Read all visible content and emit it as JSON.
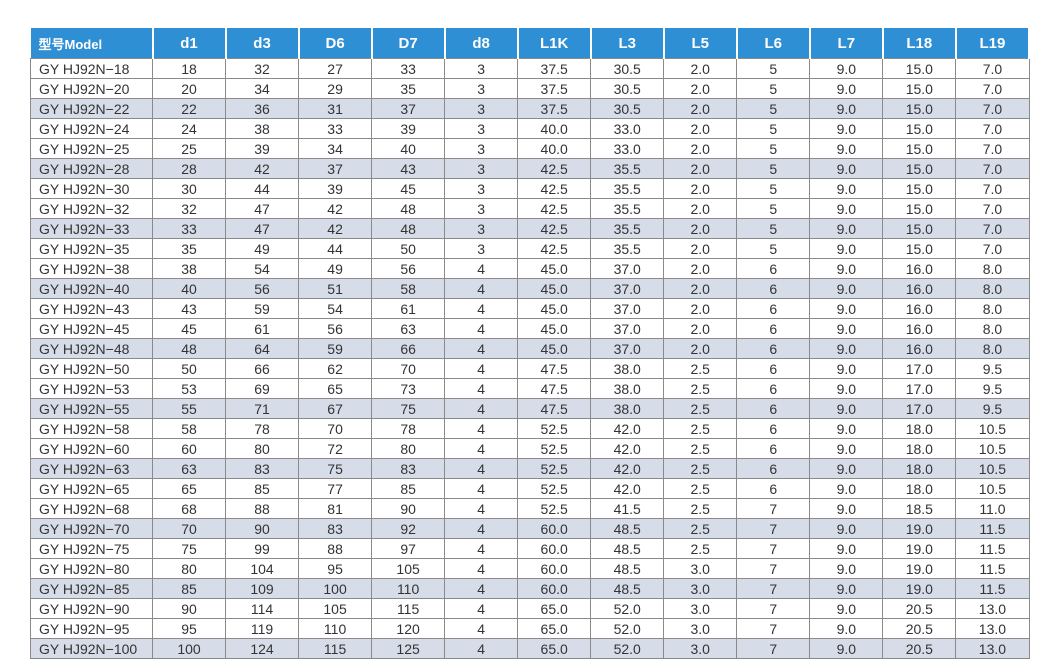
{
  "table": {
    "header": [
      "型号Model",
      "d1",
      "d3",
      "D6",
      "D7",
      "d8",
      "L1K",
      "L3",
      "L5",
      "L6",
      "L7",
      "L18",
      "L19"
    ],
    "rows": [
      [
        "GY HJ92N−18",
        "18",
        "32",
        "27",
        "33",
        "3",
        "37.5",
        "30.5",
        "2.0",
        "5",
        "9.0",
        "15.0",
        "7.0"
      ],
      [
        "GY HJ92N−20",
        "20",
        "34",
        "29",
        "35",
        "3",
        "37.5",
        "30.5",
        "2.0",
        "5",
        "9.0",
        "15.0",
        "7.0"
      ],
      [
        "GY HJ92N−22",
        "22",
        "36",
        "31",
        "37",
        "3",
        "37.5",
        "30.5",
        "2.0",
        "5",
        "9.0",
        "15.0",
        "7.0"
      ],
      [
        "GY HJ92N−24",
        "24",
        "38",
        "33",
        "39",
        "3",
        "40.0",
        "33.0",
        "2.0",
        "5",
        "9.0",
        "15.0",
        "7.0"
      ],
      [
        "GY HJ92N−25",
        "25",
        "39",
        "34",
        "40",
        "3",
        "40.0",
        "33.0",
        "2.0",
        "5",
        "9.0",
        "15.0",
        "7.0"
      ],
      [
        "GY HJ92N−28",
        "28",
        "42",
        "37",
        "43",
        "3",
        "42.5",
        "35.5",
        "2.0",
        "5",
        "9.0",
        "15.0",
        "7.0"
      ],
      [
        "GY HJ92N−30",
        "30",
        "44",
        "39",
        "45",
        "3",
        "42.5",
        "35.5",
        "2.0",
        "5",
        "9.0",
        "15.0",
        "7.0"
      ],
      [
        "GY HJ92N−32",
        "32",
        "47",
        "42",
        "48",
        "3",
        "42.5",
        "35.5",
        "2.0",
        "5",
        "9.0",
        "15.0",
        "7.0"
      ],
      [
        "GY HJ92N−33",
        "33",
        "47",
        "42",
        "48",
        "3",
        "42.5",
        "35.5",
        "2.0",
        "5",
        "9.0",
        "15.0",
        "7.0"
      ],
      [
        "GY HJ92N−35",
        "35",
        "49",
        "44",
        "50",
        "3",
        "42.5",
        "35.5",
        "2.0",
        "5",
        "9.0",
        "15.0",
        "7.0"
      ],
      [
        "GY HJ92N−38",
        "38",
        "54",
        "49",
        "56",
        "4",
        "45.0",
        "37.0",
        "2.0",
        "6",
        "9.0",
        "16.0",
        "8.0"
      ],
      [
        "GY HJ92N−40",
        "40",
        "56",
        "51",
        "58",
        "4",
        "45.0",
        "37.0",
        "2.0",
        "6",
        "9.0",
        "16.0",
        "8.0"
      ],
      [
        "GY HJ92N−43",
        "43",
        "59",
        "54",
        "61",
        "4",
        "45.0",
        "37.0",
        "2.0",
        "6",
        "9.0",
        "16.0",
        "8.0"
      ],
      [
        "GY HJ92N−45",
        "45",
        "61",
        "56",
        "63",
        "4",
        "45.0",
        "37.0",
        "2.0",
        "6",
        "9.0",
        "16.0",
        "8.0"
      ],
      [
        "GY HJ92N−48",
        "48",
        "64",
        "59",
        "66",
        "4",
        "45.0",
        "37.0",
        "2.0",
        "6",
        "9.0",
        "16.0",
        "8.0"
      ],
      [
        "GY HJ92N−50",
        "50",
        "66",
        "62",
        "70",
        "4",
        "47.5",
        "38.0",
        "2.5",
        "6",
        "9.0",
        "17.0",
        "9.5"
      ],
      [
        "GY HJ92N−53",
        "53",
        "69",
        "65",
        "73",
        "4",
        "47.5",
        "38.0",
        "2.5",
        "6",
        "9.0",
        "17.0",
        "9.5"
      ],
      [
        "GY HJ92N−55",
        "55",
        "71",
        "67",
        "75",
        "4",
        "47.5",
        "38.0",
        "2.5",
        "6",
        "9.0",
        "17.0",
        "9.5"
      ],
      [
        "GY HJ92N−58",
        "58",
        "78",
        "70",
        "78",
        "4",
        "52.5",
        "42.0",
        "2.5",
        "6",
        "9.0",
        "18.0",
        "10.5"
      ],
      [
        "GY HJ92N−60",
        "60",
        "80",
        "72",
        "80",
        "4",
        "52.5",
        "42.0",
        "2.5",
        "6",
        "9.0",
        "18.0",
        "10.5"
      ],
      [
        "GY HJ92N−63",
        "63",
        "83",
        "75",
        "83",
        "4",
        "52.5",
        "42.0",
        "2.5",
        "6",
        "9.0",
        "18.0",
        "10.5"
      ],
      [
        "GY HJ92N−65",
        "65",
        "85",
        "77",
        "85",
        "4",
        "52.5",
        "42.0",
        "2.5",
        "6",
        "9.0",
        "18.0",
        "10.5"
      ],
      [
        "GY HJ92N−68",
        "68",
        "88",
        "81",
        "90",
        "4",
        "52.5",
        "41.5",
        "2.5",
        "7",
        "9.0",
        "18.5",
        "11.0"
      ],
      [
        "GY HJ92N−70",
        "70",
        "90",
        "83",
        "92",
        "4",
        "60.0",
        "48.5",
        "2.5",
        "7",
        "9.0",
        "19.0",
        "11.5"
      ],
      [
        "GY HJ92N−75",
        "75",
        "99",
        "88",
        "97",
        "4",
        "60.0",
        "48.5",
        "2.5",
        "7",
        "9.0",
        "19.0",
        "11.5"
      ],
      [
        "GY HJ92N−80",
        "80",
        "104",
        "95",
        "105",
        "4",
        "60.0",
        "48.5",
        "3.0",
        "7",
        "9.0",
        "19.0",
        "11.5"
      ],
      [
        "GY HJ92N−85",
        "85",
        "109",
        "100",
        "110",
        "4",
        "60.0",
        "48.5",
        "3.0",
        "7",
        "9.0",
        "19.0",
        "11.5"
      ],
      [
        "GY HJ92N−90",
        "90",
        "114",
        "105",
        "115",
        "4",
        "65.0",
        "52.0",
        "3.0",
        "7",
        "9.0",
        "20.5",
        "13.0"
      ],
      [
        "GY HJ92N−95",
        "95",
        "119",
        "110",
        "120",
        "4",
        "65.0",
        "52.0",
        "3.0",
        "7",
        "9.0",
        "20.5",
        "13.0"
      ],
      [
        "GY HJ92N−100",
        "100",
        "124",
        "115",
        "125",
        "4",
        "65.0",
        "52.0",
        "3.0",
        "7",
        "9.0",
        "20.5",
        "13.0"
      ]
    ]
  }
}
